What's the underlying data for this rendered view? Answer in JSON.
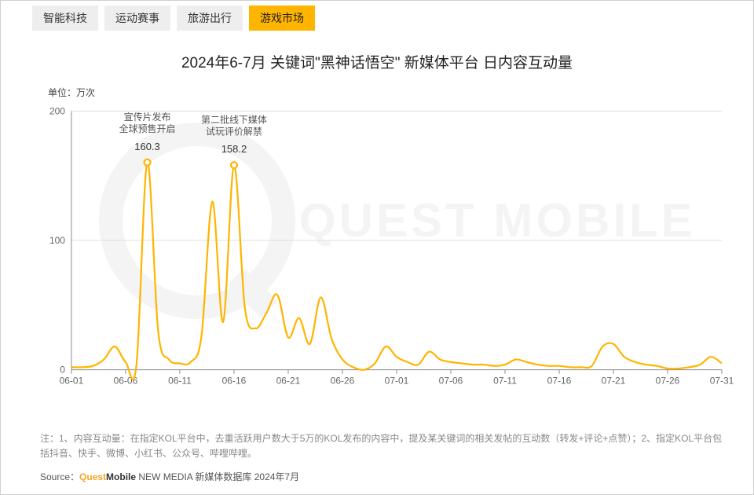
{
  "tabs": [
    {
      "label": "智能科技",
      "active": false
    },
    {
      "label": "运动赛事",
      "active": false
    },
    {
      "label": "旅游出行",
      "active": false
    },
    {
      "label": "游戏市场",
      "active": true
    }
  ],
  "title": "2024年6-7月 关键词\"黑神话悟空\" 新媒体平台 日内容互动量",
  "unit_label": "单位：万次",
  "chart": {
    "type": "line",
    "ylim": [
      0,
      200
    ],
    "yticks": [
      0,
      100,
      200
    ],
    "xticks": [
      "06-01",
      "06-06",
      "06-11",
      "06-16",
      "06-21",
      "06-26",
      "07-01",
      "07-06",
      "07-11",
      "07-16",
      "07-21",
      "07-26",
      "07-31"
    ],
    "x_count": 61,
    "line_color": "#ffb400",
    "line_width": 2.2,
    "grid_color": "#e0e0e0",
    "axis_color": "#888888",
    "axis_fontsize": 12,
    "background_color": "#ffffff",
    "watermark_text": "QUEST MOBILE",
    "watermark_color": "#f4f4f4",
    "annotations": [
      {
        "x_index": 7,
        "lines": [
          "宣传片发布",
          "全球预售开启"
        ],
        "value": "160.3"
      },
      {
        "x_index": 15,
        "lines": [
          "第二批线下媒体",
          "试玩评价解禁"
        ],
        "value": "158.2"
      }
    ],
    "peak_markers": [
      {
        "x_index": 7,
        "y": 160.3
      },
      {
        "x_index": 15,
        "y": 158.2
      }
    ],
    "values": [
      2,
      2,
      3,
      8,
      18,
      6,
      4,
      160.3,
      30,
      8,
      5,
      6,
      26,
      130,
      37,
      158.2,
      48,
      32,
      44,
      58,
      25,
      40,
      20,
      56,
      24,
      8,
      2,
      0,
      5,
      18,
      10,
      6,
      4,
      14,
      8,
      6,
      5,
      4,
      4,
      3,
      4,
      8,
      6,
      4,
      3,
      3,
      2,
      2,
      3,
      18,
      20,
      10,
      6,
      4,
      3,
      1,
      1,
      2,
      4,
      10,
      5
    ]
  },
  "notes": "注：1、内容互动量：在指定KOL平台中，去重活跃用户数大于5万的KOL发布的内容中，提及某关键词的相关发帖的互动数（转发+评论+点赞）；2、指定KOL平台包括抖音、快手、微博、小红书、公众号、哔哩哔哩。",
  "source": {
    "prefix": "Source：",
    "brand_q": "Quest",
    "brand_m": "Mobile",
    "rest": " NEW MEDIA 新媒体数据库 2024年7月"
  }
}
